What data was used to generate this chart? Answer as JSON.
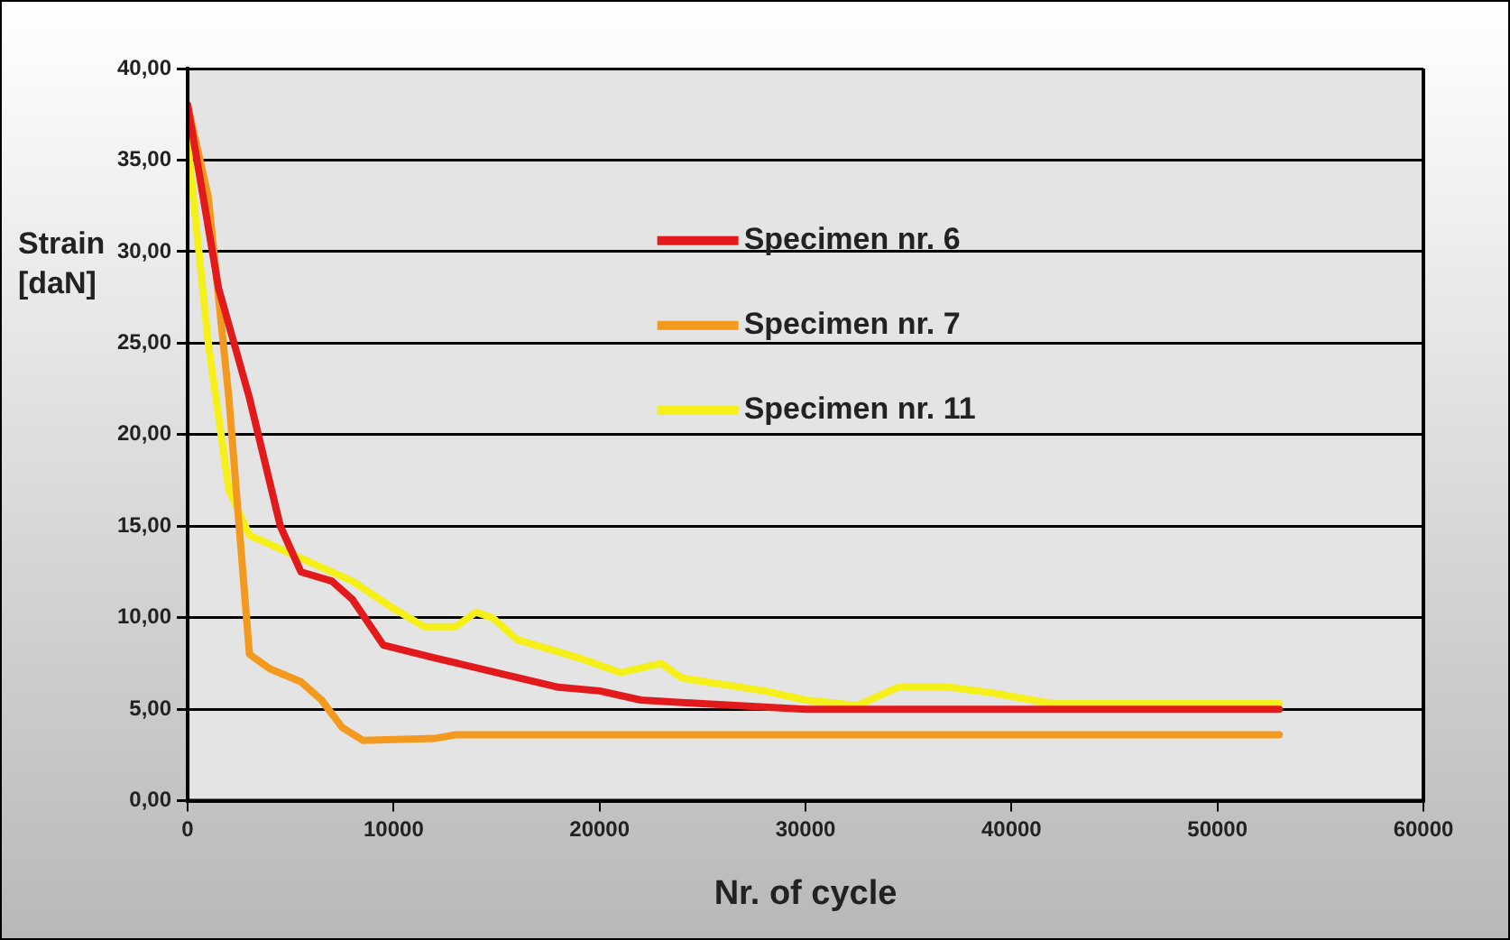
{
  "chart_data": {
    "type": "line",
    "xlabel": "Nr. of cycle",
    "ylabel": "Strain [daN]",
    "xlim": [
      0,
      60000
    ],
    "xticks": [
      0,
      10000,
      20000,
      30000,
      40000,
      50000,
      60000
    ],
    "ylim": [
      0,
      40
    ],
    "yticks": [
      {
        "value": 0,
        "label": "0,00"
      },
      {
        "value": 5,
        "label": "5,00"
      },
      {
        "value": 10,
        "label": "10,00"
      },
      {
        "value": 15,
        "label": "15,00"
      },
      {
        "value": 20,
        "label": "20,00"
      },
      {
        "value": 25,
        "label": "25,00"
      },
      {
        "value": 30,
        "label": "30,00"
      },
      {
        "value": 35,
        "label": "35,00"
      },
      {
        "value": 40,
        "label": "40,00"
      }
    ],
    "grid": "y",
    "legend": "top right",
    "marker": "none",
    "line_style": "solid",
    "series": [
      {
        "name": "Specimen nr. 6",
        "color": "#e31a1c",
        "x": [
          0,
          1500,
          3000,
          4500,
          5500,
          7000,
          8000,
          9500,
          12000,
          15000,
          18000,
          20000,
          22000,
          25000,
          30000,
          40000,
          53000
        ],
        "values": [
          38,
          28,
          22,
          15,
          12.5,
          12,
          11,
          8.5,
          7.8,
          7,
          6.2,
          6,
          5.5,
          5.3,
          5,
          5,
          5
        ]
      },
      {
        "name": "Specimen nr. 7",
        "color": "#f39a1e",
        "x": [
          0,
          1000,
          2000,
          2500,
          3000,
          4000,
          5500,
          6500,
          7500,
          8500,
          12000,
          13000,
          53000
        ],
        "values": [
          38,
          33,
          22,
          15,
          8,
          7.2,
          6.5,
          5.5,
          4,
          3.3,
          3.4,
          3.6,
          3.6
        ]
      },
      {
        "name": "Specimen nr. 11",
        "color": "#f5f01a",
        "x": [
          0,
          1000,
          2000,
          3000,
          5000,
          8000,
          10000,
          11500,
          13000,
          14000,
          14800,
          16000,
          19000,
          21000,
          23000,
          24000,
          28000,
          30000,
          32500,
          34500,
          37000,
          39000,
          42000,
          53000
        ],
        "values": [
          36,
          25,
          17,
          14.5,
          13.5,
          12,
          10.5,
          9.5,
          9.5,
          10.3,
          10,
          8.8,
          7.8,
          7,
          7.5,
          6.7,
          6,
          5.5,
          5.2,
          6.2,
          6.2,
          5.9,
          5.3,
          5.3
        ]
      }
    ]
  }
}
